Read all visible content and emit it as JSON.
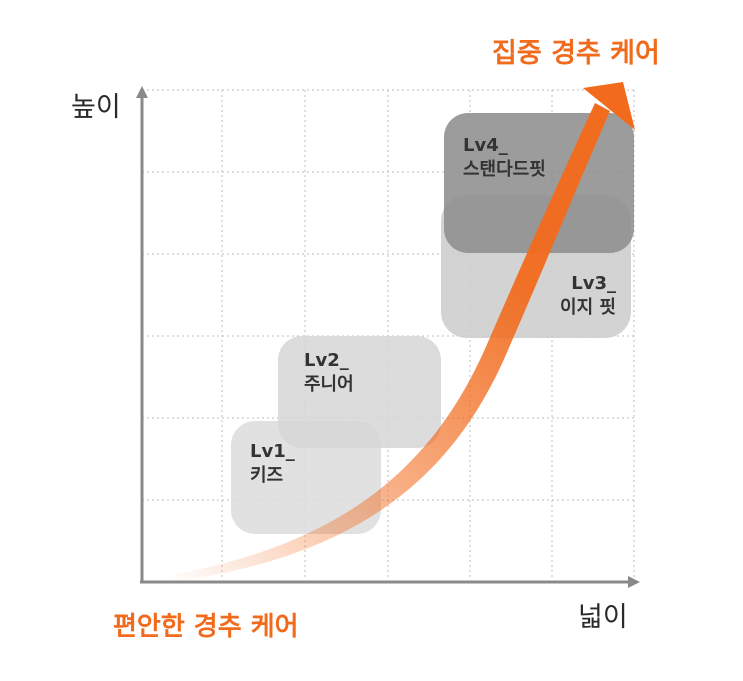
{
  "axes": {
    "y_label": "높이",
    "x_label": "넓이"
  },
  "arrow": {
    "start_label": "편안한 경추 케어",
    "end_label": "집중 경추 케어",
    "color": "#f26b1d"
  },
  "levels": [
    {
      "id": "lv1",
      "level": "Lv1_",
      "name": "키즈"
    },
    {
      "id": "lv2",
      "level": "Lv2_",
      "name": "주니어"
    },
    {
      "id": "lv3",
      "level": "Lv3_",
      "name": "이지 핏"
    },
    {
      "id": "lv4",
      "level": "Lv4_",
      "name": "스탠다드핏"
    }
  ],
  "colors": {
    "box_light": "#dcdcdc",
    "box_dark": "#8e8e8e",
    "grid": "#bdbdbd",
    "axis": "#8a8a8a"
  }
}
